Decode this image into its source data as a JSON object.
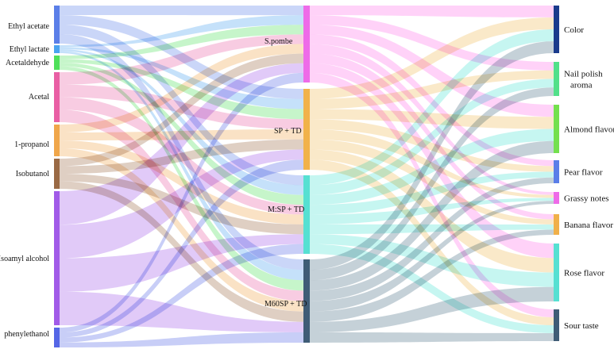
{
  "diagram": {
    "type": "sankey",
    "sources": [
      {
        "id": "ethyl_acetate",
        "label": "Ethyl acetate",
        "color": "#5b7fe8"
      },
      {
        "id": "ethyl_lactate",
        "label": "Ethyl lactate",
        "color": "#4aa3f0"
      },
      {
        "id": "acetaldehyde",
        "label": "Acetaldehyde",
        "color": "#4fe05a"
      },
      {
        "id": "acetal",
        "label": "Acetal",
        "color": "#e95fa4"
      },
      {
        "id": "propanol",
        "label": "1-propanol",
        "color": "#f0a64a"
      },
      {
        "id": "isobutanol",
        "label": "Isobutanol",
        "color": "#9a6a45"
      },
      {
        "id": "isoamyl",
        "label": "Isoamyl alcohol",
        "color": "#a15be8"
      },
      {
        "id": "phenylethanol",
        "label": "phenylethanol",
        "color": "#5566e6"
      }
    ],
    "treatments": [
      {
        "id": "spombe",
        "label": "S.pombe",
        "color": "#ee6be8",
        "link_color": "#ff9bf0"
      },
      {
        "id": "sptd",
        "label": "SP + TD",
        "color": "#f1b24a",
        "link_color": "#f5cf88"
      },
      {
        "id": "msptd",
        "label": "M:SP + TD",
        "color": "#56e0d2",
        "link_color": "#80ecdf"
      },
      {
        "id": "m60sptd",
        "label": "M60SP + TD",
        "color": "#3f5c76",
        "link_color": "#7f99a8"
      }
    ],
    "attributes": [
      {
        "id": "color",
        "label": "Color",
        "color": "#1a3b8c"
      },
      {
        "id": "nail",
        "label": "Nail polish aroma",
        "color": "#52e08a"
      },
      {
        "id": "almond",
        "label": "Almond flavor",
        "color": "#74e04e"
      },
      {
        "id": "pear",
        "label": "Pear flavor",
        "color": "#5a7ee8"
      },
      {
        "id": "grassy",
        "label": "Grassy notes",
        "color": "#ee6be8"
      },
      {
        "id": "banana",
        "label": "Banana flavor",
        "color": "#f0b04a"
      },
      {
        "id": "rose",
        "label": "Rose flavor",
        "color": "#56e0d2"
      },
      {
        "id": "sour",
        "label": "Sour taste",
        "color": "#3f5c76"
      }
    ],
    "flows_source_to_treatment": [
      {
        "from": "ethyl_acetate",
        "to": [
          "spombe",
          "sptd",
          "msptd",
          "m60sptd"
        ]
      },
      {
        "from": "ethyl_lactate",
        "to": [
          "spombe",
          "sptd",
          "msptd",
          "m60sptd"
        ]
      },
      {
        "from": "acetaldehyde",
        "to": [
          "spombe",
          "sptd",
          "msptd",
          "m60sptd"
        ]
      },
      {
        "from": "acetal",
        "to": [
          "spombe",
          "sptd",
          "msptd",
          "m60sptd"
        ]
      },
      {
        "from": "propanol",
        "to": [
          "spombe",
          "sptd",
          "msptd",
          "m60sptd"
        ]
      },
      {
        "from": "isobutanol",
        "to": [
          "spombe",
          "sptd",
          "msptd",
          "m60sptd"
        ]
      },
      {
        "from": "isoamyl",
        "to": [
          "spombe",
          "sptd",
          "msptd",
          "m60sptd"
        ]
      },
      {
        "from": "phenylethanol",
        "to": [
          "spombe",
          "sptd",
          "msptd",
          "m60sptd"
        ]
      }
    ],
    "flows_treatment_to_attribute": [
      {
        "from": "spombe",
        "to": [
          "color",
          "nail",
          "almond",
          "pear",
          "grassy",
          "banana",
          "rose",
          "sour"
        ]
      },
      {
        "from": "sptd",
        "to": [
          "color",
          "nail",
          "almond",
          "pear",
          "grassy",
          "banana",
          "rose",
          "sour"
        ]
      },
      {
        "from": "msptd",
        "to": [
          "color",
          "nail",
          "almond",
          "pear",
          "grassy",
          "banana",
          "rose",
          "sour"
        ]
      },
      {
        "from": "m60sptd",
        "to": [
          "color",
          "nail",
          "almond",
          "pear",
          "grassy",
          "banana",
          "rose",
          "sour"
        ]
      }
    ]
  }
}
